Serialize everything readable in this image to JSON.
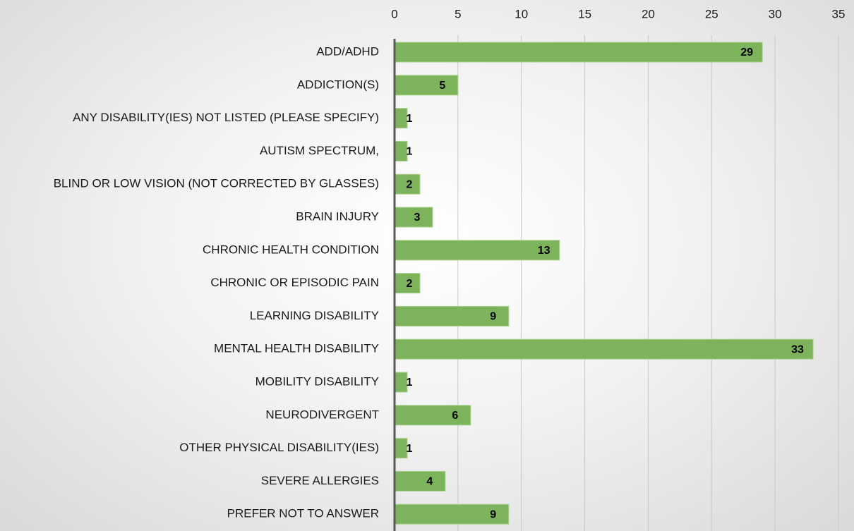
{
  "chart_data": {
    "type": "bar",
    "orientation": "horizontal",
    "categories": [
      "ADD/ADHD",
      "ADDICTION(S)",
      "ANY DISABILITY(IES) NOT LISTED (PLEASE SPECIFY)",
      "AUTISM SPECTRUM,",
      "BLIND OR LOW VISION (NOT CORRECTED BY GLASSES)",
      "BRAIN INJURY",
      "CHRONIC HEALTH CONDITION",
      "CHRONIC OR EPISODIC PAIN",
      "LEARNING DISABILITY",
      "MENTAL HEALTH DISABILITY",
      "MOBILITY DISABILITY",
      "NEURODIVERGENT",
      "OTHER PHYSICAL DISABILITY(IES)",
      "SEVERE ALLERGIES",
      "PREFER NOT TO ANSWER"
    ],
    "values": [
      29,
      5,
      1,
      1,
      2,
      3,
      13,
      2,
      9,
      33,
      1,
      6,
      1,
      4,
      9
    ],
    "color": "#7db35b",
    "xlim": [
      0,
      35
    ],
    "xticks": [
      0,
      5,
      10,
      15,
      20,
      25,
      30,
      35
    ],
    "grid": true
  }
}
